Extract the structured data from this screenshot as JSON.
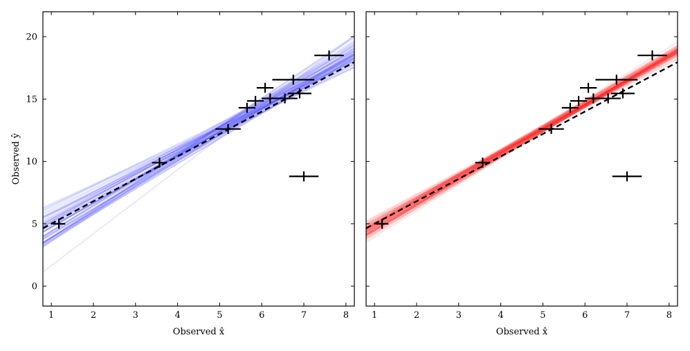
{
  "chart_data": [
    {
      "type": "scatter",
      "panel": "left",
      "title": "",
      "xlabel": "Observed x̂",
      "ylabel": "Observed ŷ",
      "xlim": [
        0.8,
        8.2
      ],
      "ylim": [
        -1.6,
        22.0
      ],
      "xticks": [
        1,
        2,
        3,
        4,
        5,
        6,
        7,
        8
      ],
      "yticks": [
        0,
        5,
        10,
        15,
        20
      ],
      "ensemble_color": "#3b3bff",
      "ensemble_description": "posterior regression draws",
      "ensemble_intercept_mean": 2.7,
      "ensemble_intercept_sd": 1.4,
      "ensemble_slope_mean": 1.95,
      "ensemble_slope_sd": 0.22,
      "ensemble_n_lines": 60,
      "reference_line": {
        "style": "dashed",
        "color": "#000000",
        "slope": 1.8,
        "intercept": 3.2
      },
      "points": [
        {
          "x": 1.18,
          "y": 5.0,
          "xerr": 0.15,
          "yerr": 0.4
        },
        {
          "x": 3.57,
          "y": 9.9,
          "xerr": 0.18,
          "yerr": 0.4
        },
        {
          "x": 5.2,
          "y": 12.6,
          "xerr": 0.3,
          "yerr": 0.4
        },
        {
          "x": 5.65,
          "y": 14.3,
          "xerr": 0.2,
          "yerr": 0.4
        },
        {
          "x": 5.85,
          "y": 14.85,
          "xerr": 0.2,
          "yerr": 0.4
        },
        {
          "x": 6.08,
          "y": 15.9,
          "xerr": 0.2,
          "yerr": 0.4
        },
        {
          "x": 6.2,
          "y": 15.05,
          "xerr": 0.2,
          "yerr": 0.4
        },
        {
          "x": 6.55,
          "y": 15.05,
          "xerr": 0.3,
          "yerr": 0.4
        },
        {
          "x": 6.75,
          "y": 16.55,
          "xerr": 0.5,
          "yerr": 0.4
        },
        {
          "x": 6.9,
          "y": 15.45,
          "xerr": 0.28,
          "yerr": 0.4
        },
        {
          "x": 7.0,
          "y": 8.8,
          "xerr": 0.35,
          "yerr": 0.4
        },
        {
          "x": 7.6,
          "y": 18.5,
          "xerr": 0.35,
          "yerr": 0.4
        }
      ]
    },
    {
      "type": "scatter",
      "panel": "right",
      "title": "",
      "xlabel": "Observed x̂",
      "ylabel": "",
      "xlim": [
        0.8,
        8.2
      ],
      "ylim": [
        -1.6,
        22.0
      ],
      "xticks": [
        1,
        2,
        3,
        4,
        5,
        6,
        7,
        8
      ],
      "yticks": [
        0,
        5,
        10,
        15,
        20
      ],
      "ensemble_color": "#ff1f1f",
      "ensemble_description": "posterior regression draws",
      "ensemble_intercept_mean": 2.9,
      "ensemble_intercept_sd": 0.5,
      "ensemble_slope_mean": 1.94,
      "ensemble_slope_sd": 0.08,
      "ensemble_n_lines": 60,
      "reference_line": {
        "style": "dashed",
        "color": "#000000",
        "slope": 1.8,
        "intercept": 3.2
      },
      "points": [
        {
          "x": 1.18,
          "y": 5.0,
          "xerr": 0.15,
          "yerr": 0.4
        },
        {
          "x": 3.57,
          "y": 9.9,
          "xerr": 0.18,
          "yerr": 0.4
        },
        {
          "x": 5.2,
          "y": 12.6,
          "xerr": 0.3,
          "yerr": 0.4
        },
        {
          "x": 5.65,
          "y": 14.3,
          "xerr": 0.2,
          "yerr": 0.4
        },
        {
          "x": 5.85,
          "y": 14.85,
          "xerr": 0.2,
          "yerr": 0.4
        },
        {
          "x": 6.08,
          "y": 15.9,
          "xerr": 0.2,
          "yerr": 0.4
        },
        {
          "x": 6.2,
          "y": 15.05,
          "xerr": 0.2,
          "yerr": 0.4
        },
        {
          "x": 6.55,
          "y": 15.05,
          "xerr": 0.3,
          "yerr": 0.4
        },
        {
          "x": 6.75,
          "y": 16.55,
          "xerr": 0.5,
          "yerr": 0.4
        },
        {
          "x": 6.9,
          "y": 15.45,
          "xerr": 0.28,
          "yerr": 0.4
        },
        {
          "x": 7.0,
          "y": 8.8,
          "xerr": 0.35,
          "yerr": 0.4
        },
        {
          "x": 7.6,
          "y": 18.5,
          "xerr": 0.35,
          "yerr": 0.4
        }
      ]
    }
  ]
}
